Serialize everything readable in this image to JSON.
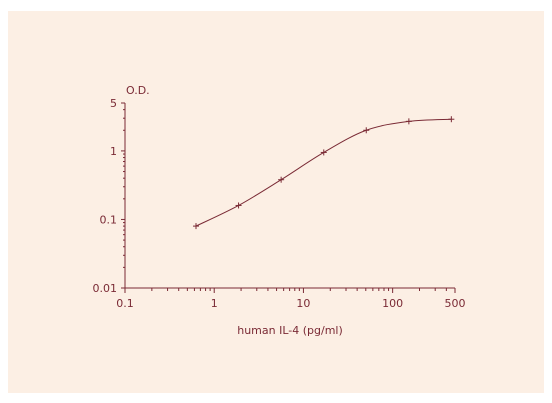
{
  "chart_data": {
    "type": "line",
    "title": "",
    "xlabel": "human IL-4 (pg/ml)",
    "ylabel": "O.D.",
    "x_scale": "log",
    "y_scale": "log",
    "xlim": [
      0.1,
      500
    ],
    "ylim": [
      0.01,
      5
    ],
    "x_ticks": [
      "0.1",
      "1",
      "10",
      "100",
      "500"
    ],
    "y_ticks": [
      "0.01",
      "0.1",
      "1",
      "5"
    ],
    "grid": false,
    "series": [
      {
        "x": [
          0.625,
          1.875,
          5.625,
          16.9,
          50.6,
          152,
          455
        ],
        "y": [
          0.08,
          0.16,
          0.38,
          0.95,
          2.0,
          2.7,
          2.9
        ]
      }
    ],
    "colors": {
      "axis": "#7a2a35",
      "line": "#7a2a35",
      "background": "#fcefe4"
    }
  }
}
